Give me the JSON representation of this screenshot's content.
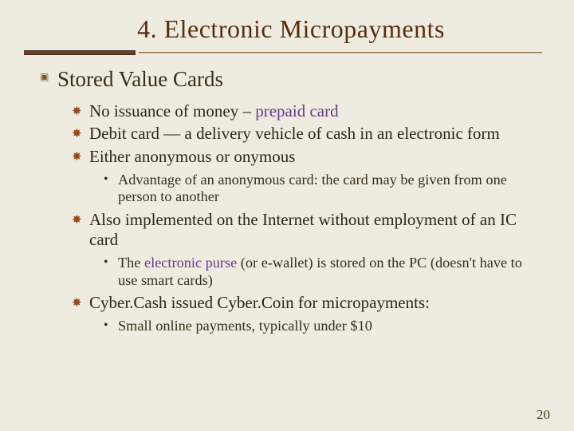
{
  "title": "4.  Electronic Micropayments",
  "section": "Stored Value Cards",
  "bullets2": [
    {
      "pre": "No issuance of money – ",
      "hl": "prepaid card",
      "post": ""
    },
    {
      "pre": "Debit card — a delivery vehicle of cash in an electronic form",
      "hl": "",
      "post": ""
    },
    {
      "pre": "Either anonymous or onymous",
      "hl": "",
      "post": ""
    }
  ],
  "sub1": "Advantage of an anonymous card:  the card may be given from one person to another",
  "bullet4": "Also implemented on the Internet without employment of an IC card",
  "sub2": {
    "pre": "The ",
    "hl": "electronic purse",
    "post": " (or e-wallet) is stored on the PC (doesn't have to use smart cards)"
  },
  "bullet5": "Cyber.Cash issued Cyber.Coin for micropayments:",
  "sub3": "Small online payments, typically under $10",
  "page": "20",
  "marks": {
    "m1": "▣",
    "m2": "✸",
    "m3": "•"
  }
}
